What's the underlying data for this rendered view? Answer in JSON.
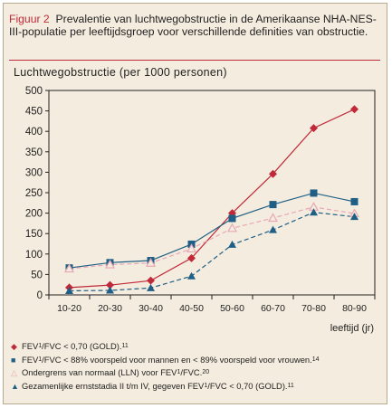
{
  "figure": {
    "label": "Figuur 2",
    "caption": "Prevalentie van luchtwegobstructie in de Amerikaanse NHA-NES-III-populatie per leeftijdsgroep voor verschillende definities van obstructie."
  },
  "colors": {
    "background": "#f4ecde",
    "red": "#c0293a",
    "navy": "#1f5f86",
    "pink": "#e7a8b6"
  },
  "chart_data": {
    "type": "line",
    "ylabel": "Luchtwegobstructie (per 1000 personen)",
    "xlabel": "leeftijd (jr)",
    "categories": [
      "10-20",
      "20-30",
      "30-40",
      "40-50",
      "50-60",
      "60-70",
      "70-80",
      "80-90"
    ],
    "yticks": [
      0,
      50,
      100,
      150,
      200,
      250,
      300,
      350,
      400,
      450,
      500
    ],
    "ylim": [
      0,
      500
    ],
    "grid": false,
    "series": [
      {
        "key": "gold",
        "marker": "diamond",
        "values": [
          18,
          24,
          35,
          90,
          200,
          296,
          408,
          454
        ]
      },
      {
        "key": "lln88",
        "marker": "square",
        "values": [
          66,
          79,
          84,
          124,
          187,
          221,
          249,
          228
        ]
      },
      {
        "key": "lln",
        "marker": "triangle-open",
        "values": [
          64,
          74,
          78,
          113,
          163,
          188,
          215,
          199
        ]
      },
      {
        "key": "stages",
        "marker": "triangle",
        "values": [
          10,
          11,
          17,
          46,
          123,
          159,
          202,
          191
        ]
      }
    ]
  },
  "legend": {
    "items": [
      {
        "sym": "◆",
        "text1": "FEV",
        "sub": "1",
        "text2": "/FVC < 0,70 (GOLD).",
        "sup": "11"
      },
      {
        "sym": "■",
        "text1": "FEV",
        "sub": "1",
        "text2": "/FVC < 88% voorspeld voor mannen en < 89% voorspeld voor vrouwen.",
        "sup": "14"
      },
      {
        "sym": "△",
        "text1": "Ondergrens van normaal (LLN) voor FEV",
        "sub": "1",
        "text2": "/FVC.",
        "sup": "20"
      },
      {
        "sym": "▲",
        "text1": "Gezamenlijke ernststadia II t/m IV, gegeven FEV",
        "sub": "1",
        "text2": "/FVC < 0,70 (GOLD).",
        "sup": "11"
      }
    ]
  }
}
